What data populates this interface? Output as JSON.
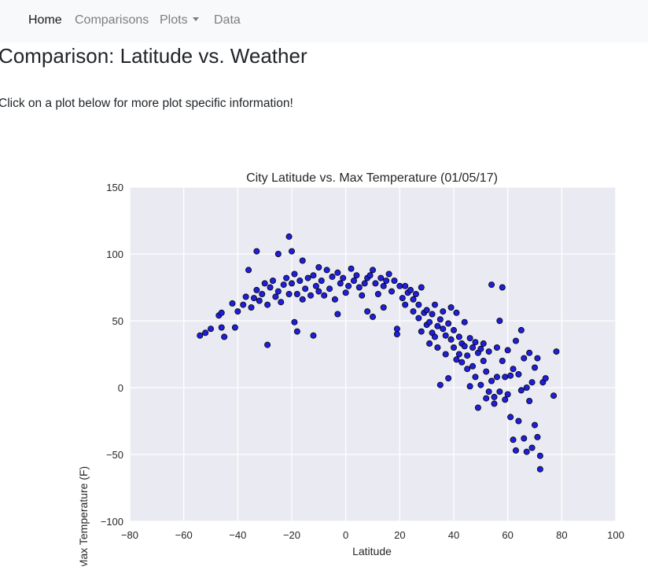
{
  "nav": {
    "items": [
      {
        "label": "Home",
        "active": true
      },
      {
        "label": "Comparisons",
        "active": false
      },
      {
        "label": "Plots",
        "active": false,
        "dropdown": true
      },
      {
        "label": "Data",
        "active": false
      }
    ]
  },
  "page": {
    "title": "Comparison: Latitude vs. Weather",
    "intro": "Click on a plot below for more plot specific information!"
  },
  "colors": {
    "navbar_bg": "#f8f9fa",
    "plot_bg": "#eaeaf2",
    "point_fill": "#1f1fdb",
    "point_edge": "#000000"
  },
  "chart_data": {
    "type": "scatter",
    "title": "City Latitude vs. Max Temperature (01/05/17)",
    "xlabel": "Latitude",
    "ylabel": "Max Temperature (F)",
    "xlim": [
      -80,
      100
    ],
    "ylim": [
      -100,
      150
    ],
    "xticks": [
      -80,
      -60,
      -40,
      -20,
      0,
      20,
      40,
      60,
      80,
      100
    ],
    "yticks": [
      -100,
      -50,
      0,
      50,
      100,
      150
    ],
    "xtick_labels": [
      "−80",
      "−60",
      "−40",
      "−20",
      "0",
      "20",
      "40",
      "60",
      "80",
      "100"
    ],
    "ytick_labels": [
      "−100",
      "−50",
      "0",
      "50",
      "100",
      "150"
    ],
    "grid": true,
    "legend": "none",
    "series": [
      {
        "points": [
          [
            -54,
            39
          ],
          [
            -52,
            41
          ],
          [
            -50,
            44
          ],
          [
            -47,
            54
          ],
          [
            -46,
            56
          ],
          [
            -46,
            45
          ],
          [
            -45,
            38
          ],
          [
            -42,
            63
          ],
          [
            -41,
            45
          ],
          [
            -40,
            57
          ],
          [
            -38,
            62
          ],
          [
            -37,
            68
          ],
          [
            -36,
            88
          ],
          [
            -35,
            60
          ],
          [
            -34,
            67
          ],
          [
            -33,
            102
          ],
          [
            -33,
            73
          ],
          [
            -32,
            65
          ],
          [
            -31,
            70
          ],
          [
            -30,
            78
          ],
          [
            -29,
            62
          ],
          [
            -29,
            32
          ],
          [
            -28,
            75
          ],
          [
            -27,
            80
          ],
          [
            -26,
            68
          ],
          [
            -25,
            72
          ],
          [
            -25,
            100
          ],
          [
            -24,
            64
          ],
          [
            -23,
            77
          ],
          [
            -22,
            82
          ],
          [
            -21,
            70
          ],
          [
            -21,
            113
          ],
          [
            -20,
            102
          ],
          [
            -20,
            78
          ],
          [
            -19,
            85
          ],
          [
            -19,
            49
          ],
          [
            -18,
            42
          ],
          [
            -18,
            70
          ],
          [
            -17,
            80
          ],
          [
            -16,
            95
          ],
          [
            -16,
            66
          ],
          [
            -15,
            74
          ],
          [
            -14,
            82
          ],
          [
            -13,
            69
          ],
          [
            -12,
            39
          ],
          [
            -12,
            84
          ],
          [
            -11,
            76
          ],
          [
            -10,
            90
          ],
          [
            -10,
            72
          ],
          [
            -9,
            80
          ],
          [
            -8,
            69
          ],
          [
            -7,
            88
          ],
          [
            -6,
            74
          ],
          [
            -5,
            83
          ],
          [
            -4,
            66
          ],
          [
            -3,
            86
          ],
          [
            -3,
            55
          ],
          [
            -2,
            78
          ],
          [
            -1,
            82
          ],
          [
            0,
            71
          ],
          [
            1,
            76
          ],
          [
            2,
            89
          ],
          [
            3,
            80
          ],
          [
            4,
            84
          ],
          [
            5,
            75
          ],
          [
            6,
            69
          ],
          [
            7,
            78
          ],
          [
            8,
            82
          ],
          [
            8,
            57
          ],
          [
            9,
            84
          ],
          [
            10,
            88
          ],
          [
            10,
            53
          ],
          [
            11,
            78
          ],
          [
            12,
            70
          ],
          [
            13,
            82
          ],
          [
            14,
            76
          ],
          [
            14,
            60
          ],
          [
            15,
            80
          ],
          [
            16,
            85
          ],
          [
            17,
            72
          ],
          [
            18,
            80
          ],
          [
            19,
            44
          ],
          [
            19,
            40
          ],
          [
            20,
            76
          ],
          [
            21,
            67
          ],
          [
            22,
            76
          ],
          [
            22,
            62
          ],
          [
            23,
            71
          ],
          [
            24,
            73
          ],
          [
            25,
            66
          ],
          [
            25,
            57
          ],
          [
            26,
            70
          ],
          [
            27,
            62
          ],
          [
            27,
            52
          ],
          [
            28,
            75
          ],
          [
            28,
            42
          ],
          [
            29,
            56
          ],
          [
            30,
            47
          ],
          [
            30,
            58
          ],
          [
            31,
            49
          ],
          [
            31,
            33
          ],
          [
            32,
            41
          ],
          [
            32,
            55
          ],
          [
            33,
            62
          ],
          [
            33,
            38
          ],
          [
            34,
            46
          ],
          [
            34,
            30
          ],
          [
            35,
            51
          ],
          [
            35,
            2
          ],
          [
            36,
            44
          ],
          [
            36,
            57
          ],
          [
            37,
            39
          ],
          [
            37,
            25
          ],
          [
            38,
            48
          ],
          [
            38,
            7
          ],
          [
            39,
            60
          ],
          [
            39,
            36
          ],
          [
            40,
            30
          ],
          [
            40,
            43
          ],
          [
            41,
            21
          ],
          [
            41,
            56
          ],
          [
            42,
            38
          ],
          [
            42,
            25
          ],
          [
            43,
            19
          ],
          [
            43,
            33
          ],
          [
            44,
            31
          ],
          [
            44,
            49
          ],
          [
            45,
            24
          ],
          [
            45,
            14
          ],
          [
            46,
            37
          ],
          [
            46,
            1
          ],
          [
            47,
            30
          ],
          [
            47,
            16
          ],
          [
            48,
            34
          ],
          [
            48,
            8
          ],
          [
            49,
            -15
          ],
          [
            49,
            26
          ],
          [
            50,
            29
          ],
          [
            50,
            2
          ],
          [
            51,
            20
          ],
          [
            51,
            33
          ],
          [
            52,
            -8
          ],
          [
            52,
            12
          ],
          [
            53,
            -3
          ],
          [
            53,
            27
          ],
          [
            54,
            77
          ],
          [
            54,
            5
          ],
          [
            55,
            -12
          ],
          [
            55,
            -7
          ],
          [
            56,
            30
          ],
          [
            56,
            8
          ],
          [
            57,
            50
          ],
          [
            57,
            -3
          ],
          [
            58,
            20
          ],
          [
            58,
            75
          ],
          [
            59,
            8
          ],
          [
            59,
            -9
          ],
          [
            60,
            -5
          ],
          [
            60,
            28
          ],
          [
            61,
            -22
          ],
          [
            61,
            9
          ],
          [
            62,
            -39
          ],
          [
            62,
            14
          ],
          [
            63,
            -47
          ],
          [
            63,
            35
          ],
          [
            64,
            -25
          ],
          [
            64,
            10
          ],
          [
            65,
            43
          ],
          [
            65,
            -2
          ],
          [
            66,
            -38
          ],
          [
            66,
            22
          ],
          [
            67,
            -48
          ],
          [
            67,
            0
          ],
          [
            68,
            -10
          ],
          [
            68,
            26
          ],
          [
            69,
            -45
          ],
          [
            69,
            4
          ],
          [
            70,
            -28
          ],
          [
            70,
            15
          ],
          [
            71,
            -37
          ],
          [
            71,
            22
          ],
          [
            72,
            -51
          ],
          [
            72,
            -61
          ],
          [
            73,
            4
          ],
          [
            74,
            7
          ],
          [
            77,
            -6
          ],
          [
            78,
            27
          ]
        ]
      }
    ]
  }
}
